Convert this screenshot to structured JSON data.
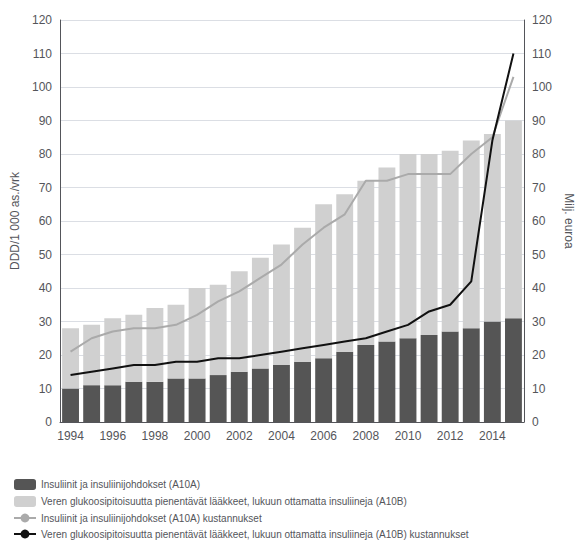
{
  "chart_data": {
    "type": "bar",
    "categories": [
      "1994",
      null,
      "1996",
      null,
      "1998",
      null,
      "2000",
      null,
      "2002",
      null,
      "2004",
      null,
      "2006",
      null,
      "2008",
      null,
      "2010",
      null,
      "2012",
      null,
      "2014",
      null
    ],
    "series": [
      {
        "name": "Insuliinit ja insuliinijohdokset (A10A)",
        "type": "bar",
        "color": "#555555",
        "values": [
          10,
          11,
          11,
          12,
          12,
          13,
          13,
          14,
          15,
          16,
          17,
          18,
          19,
          21,
          23,
          24,
          25,
          26,
          27,
          28,
          30,
          31
        ]
      },
      {
        "name": "Veren glukoosipitoisuutta pienentävät lääkkeet, lukuun ottamatta insuliineja (A10B)",
        "type": "bar",
        "color": "#d0d0d0",
        "values": [
          18,
          18,
          20,
          20,
          22,
          22,
          27,
          27,
          30,
          33,
          36,
          40,
          46,
          47,
          49,
          52,
          55,
          54,
          54,
          56,
          56,
          59
        ]
      },
      {
        "name": "Insuliinit ja insuliinijohdokset (A10A) kustannukset",
        "type": "line",
        "axis": "y2",
        "color": "#aaaaaa",
        "values": [
          21,
          25,
          27,
          28,
          28,
          29,
          32,
          36,
          39,
          43,
          47,
          53,
          58,
          62,
          72,
          72,
          74,
          74,
          74,
          80,
          85,
          103
        ]
      },
      {
        "name": "Veren glukoosipitoisuutta pienentävät lääkkeet, lukuun ottamatta insuliineja (A10B) kustannukset",
        "type": "line",
        "axis": "y2",
        "color": "#111111",
        "values": [
          14,
          15,
          16,
          17,
          17,
          18,
          18,
          19,
          19,
          20,
          21,
          22,
          23,
          24,
          25,
          27,
          29,
          33,
          35,
          42,
          84,
          110
        ]
      }
    ],
    "stacked": true,
    "ylabel": "DDD/1 000 as./vrk",
    "y2label": "Milj. euroa",
    "ylim": [
      0,
      120
    ],
    "yticks": [
      0,
      10,
      20,
      30,
      40,
      50,
      60,
      70,
      80,
      90,
      100,
      110,
      120
    ],
    "y2lim": [
      0,
      120
    ],
    "y2ticks": [
      0,
      10,
      20,
      30,
      40,
      50,
      60,
      70,
      80,
      90,
      100,
      110,
      120
    ],
    "grid": true,
    "legend": "lower left"
  }
}
